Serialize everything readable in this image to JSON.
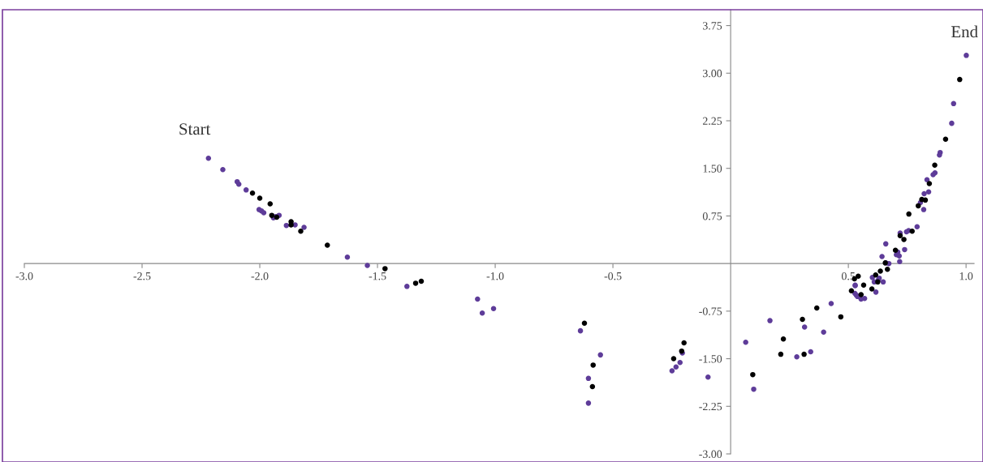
{
  "chart_data": {
    "type": "scatter",
    "marker": "circle",
    "grid": false,
    "xlim": [
      -3.0,
      1.034
    ],
    "ylim": [
      -3.0,
      4.0
    ],
    "xticks": [
      {
        "value": -3.0,
        "label": "-3.0"
      },
      -2.5,
      {
        "value": -2.0,
        "label": "-2.0"
      },
      -1.5,
      {
        "value": -1.0,
        "label": "-1.0"
      },
      -0.5,
      0.5,
      {
        "value": 1.0,
        "label": "1.0"
      }
    ],
    "yticks": [
      {
        "value": -3.0,
        "label": "-3.00"
      },
      -2.25,
      {
        "value": -1.5,
        "label": "-1.50"
      },
      -0.75,
      0.75,
      {
        "value": 1.5,
        "label": "1.50"
      },
      2.25,
      {
        "value": 3.0,
        "label": "3.00"
      },
      3.75
    ],
    "annotations": [
      "Start",
      "End"
    ],
    "series": [
      {
        "color": "#5e3c99",
        "x": [
          -2.218,
          -2.157,
          -2.096,
          -2.089,
          -2.058,
          -2.003,
          -1.993,
          -1.983,
          -1.942,
          -1.932,
          -1.918,
          -1.887,
          -1.85,
          -1.812,
          -1.628,
          -1.543,
          -1.375,
          -1.075,
          -1.055,
          -1.007,
          -0.638,
          -0.553,
          -0.604,
          -0.604,
          -0.249,
          -0.232,
          -0.215,
          -0.205,
          -0.096,
          0.064,
          0.167,
          0.098,
          0.281,
          0.314,
          0.34,
          0.395,
          0.427,
          0.529,
          1.001,
          0.947,
          0.939,
          0.89,
          0.887,
          0.868,
          0.86,
          0.834,
          0.841,
          0.822,
          0.806,
          0.82,
          0.792,
          0.756,
          0.747,
          0.72,
          0.739,
          0.659,
          0.71,
          0.716,
          0.718,
          0.704,
          0.643,
          0.659,
          0.672,
          0.631,
          0.627,
          0.602,
          0.61,
          0.648,
          0.617,
          0.529,
          0.528,
          0.534,
          0.539,
          0.554,
          0.569
        ],
        "values": [
          1.66,
          1.48,
          1.29,
          1.25,
          1.16,
          0.85,
          0.83,
          0.8,
          0.72,
          0.74,
          0.76,
          0.6,
          0.61,
          0.57,
          0.1,
          -0.03,
          -0.36,
          -0.56,
          -0.78,
          -0.71,
          -1.06,
          -1.44,
          -1.81,
          -2.2,
          -1.69,
          -1.63,
          -1.56,
          -1.41,
          -1.79,
          -1.24,
          -0.9,
          -1.98,
          -1.47,
          -1.0,
          -1.39,
          -1.08,
          -0.63,
          -0.35,
          3.28,
          2.52,
          2.21,
          1.75,
          1.71,
          1.43,
          1.4,
          1.32,
          1.13,
          1.1,
          0.96,
          0.85,
          0.58,
          0.52,
          0.5,
          0.48,
          0.22,
          0.31,
          0.18,
          0.12,
          0.03,
          0.14,
          0.11,
          0.01,
          0.0,
          -0.23,
          -0.26,
          -0.22,
          -0.29,
          -0.29,
          -0.45,
          -0.34,
          -0.47,
          -0.5,
          -0.52,
          -0.56,
          -0.55
        ]
      },
      {
        "color": "#000000",
        "x": [
          -2.031,
          -2.0,
          -1.956,
          -1.949,
          -1.928,
          -1.867,
          -1.867,
          -1.826,
          -1.713,
          -1.468,
          -1.338,
          -1.314,
          -0.621,
          -0.584,
          -0.587,
          -0.242,
          -0.208,
          -0.198,
          0.094,
          0.213,
          0.224,
          0.305,
          0.312,
          0.366,
          0.468,
          0.973,
          0.913,
          0.867,
          0.844,
          0.827,
          0.812,
          0.797,
          0.757,
          0.771,
          0.72,
          0.736,
          0.7,
          0.657,
          0.666,
          0.636,
          0.616,
          0.625,
          0.6,
          0.542,
          0.526,
          0.565,
          0.513,
          0.554
        ],
        "values": [
          1.11,
          1.03,
          0.94,
          0.76,
          0.73,
          0.66,
          0.61,
          0.51,
          0.29,
          -0.08,
          -0.31,
          -0.28,
          -0.94,
          -1.6,
          -1.94,
          -1.5,
          -1.38,
          -1.25,
          -1.75,
          -1.43,
          -1.19,
          -0.88,
          -1.43,
          -0.7,
          -0.84,
          2.9,
          1.96,
          1.55,
          1.26,
          1.0,
          1.01,
          0.91,
          0.78,
          0.51,
          0.44,
          0.38,
          0.21,
          0.01,
          -0.09,
          -0.12,
          -0.18,
          -0.29,
          -0.4,
          -0.2,
          -0.24,
          -0.34,
          -0.43,
          -0.49
        ]
      }
    ]
  }
}
